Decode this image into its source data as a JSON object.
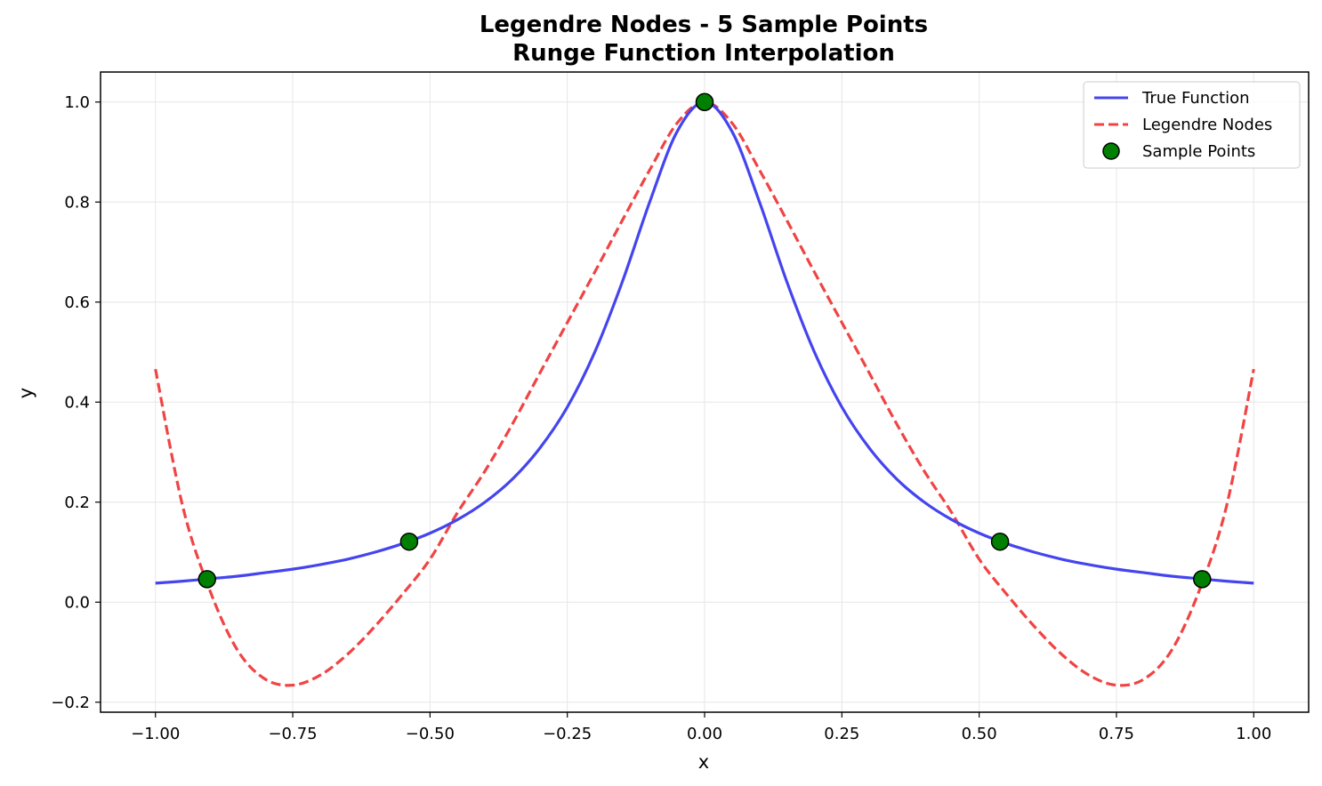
{
  "chart_data": {
    "type": "line",
    "title": "Legendre Nodes - 5 Sample Points",
    "subtitle": "Runge Function Interpolation",
    "xlabel": "x",
    "ylabel": "y",
    "xlim": [
      -1.1,
      1.1
    ],
    "ylim": [
      -0.22,
      1.06
    ],
    "xticks": [
      -1.0,
      -0.75,
      -0.5,
      -0.25,
      0.0,
      0.25,
      0.5,
      0.75,
      1.0
    ],
    "xtick_labels": [
      "−1.00",
      "−0.75",
      "−0.50",
      "−0.25",
      "0.00",
      "0.25",
      "0.50",
      "0.75",
      "1.00"
    ],
    "yticks": [
      -0.2,
      0.0,
      0.2,
      0.4,
      0.6,
      0.8,
      1.0
    ],
    "ytick_labels": [
      "−0.2",
      "0.0",
      "0.2",
      "0.4",
      "0.6",
      "0.8",
      "1.0"
    ],
    "grid": true,
    "legend_position": "top-right",
    "series": [
      {
        "name": "True Function",
        "style": "solid",
        "color": "#4444f0",
        "x": [
          -1.0,
          -0.95,
          -0.9,
          -0.85,
          -0.8,
          -0.75,
          -0.7,
          -0.65,
          -0.6,
          -0.55,
          -0.5,
          -0.45,
          -0.4,
          -0.35,
          -0.3,
          -0.25,
          -0.2,
          -0.15,
          -0.1,
          -0.05,
          0.0,
          0.05,
          0.1,
          0.15,
          0.2,
          0.25,
          0.3,
          0.35,
          0.4,
          0.45,
          0.5,
          0.55,
          0.6,
          0.65,
          0.7,
          0.75,
          0.8,
          0.85,
          0.9,
          0.95,
          1.0
        ],
        "y": [
          0.038,
          0.042,
          0.047,
          0.052,
          0.059,
          0.066,
          0.075,
          0.086,
          0.1,
          0.117,
          0.138,
          0.165,
          0.2,
          0.246,
          0.308,
          0.39,
          0.5,
          0.64,
          0.8,
          0.941,
          1.0,
          0.941,
          0.8,
          0.64,
          0.5,
          0.39,
          0.308,
          0.246,
          0.2,
          0.165,
          0.138,
          0.117,
          0.1,
          0.086,
          0.075,
          0.066,
          0.059,
          0.052,
          0.047,
          0.042,
          0.038
        ]
      },
      {
        "name": "Legendre Nodes",
        "style": "dashed",
        "color": "#f04444",
        "x": [
          -1.0,
          -0.95,
          -0.9,
          -0.85,
          -0.8,
          -0.75,
          -0.7,
          -0.65,
          -0.6,
          -0.55,
          -0.5,
          -0.45,
          -0.4,
          -0.35,
          -0.3,
          -0.25,
          -0.2,
          -0.15,
          -0.1,
          -0.05,
          0.0,
          0.05,
          0.1,
          0.15,
          0.2,
          0.25,
          0.3,
          0.35,
          0.4,
          0.45,
          0.5,
          0.55,
          0.6,
          0.65,
          0.7,
          0.75,
          0.8,
          0.85,
          0.9,
          0.95,
          1.0
        ],
        "y": [
          0.466,
          0.19,
          0.021,
          -0.097,
          -0.154,
          -0.166,
          -0.146,
          -0.104,
          -0.048,
          0.016,
          0.086,
          0.179,
          0.262,
          0.356,
          0.458,
          0.559,
          0.66,
          0.763,
          0.864,
          0.958,
          1.0,
          0.958,
          0.864,
          0.763,
          0.66,
          0.559,
          0.458,
          0.356,
          0.262,
          0.179,
          0.086,
          0.016,
          -0.048,
          -0.104,
          -0.146,
          -0.166,
          -0.154,
          -0.097,
          0.021,
          0.19,
          0.466
        ]
      },
      {
        "name": "Sample Points",
        "style": "markers",
        "color": "#008000",
        "x": [
          -0.906,
          -0.538,
          0.0,
          0.538,
          0.906
        ],
        "y": [
          0.046,
          0.121,
          1.0,
          0.121,
          0.046
        ]
      }
    ]
  }
}
